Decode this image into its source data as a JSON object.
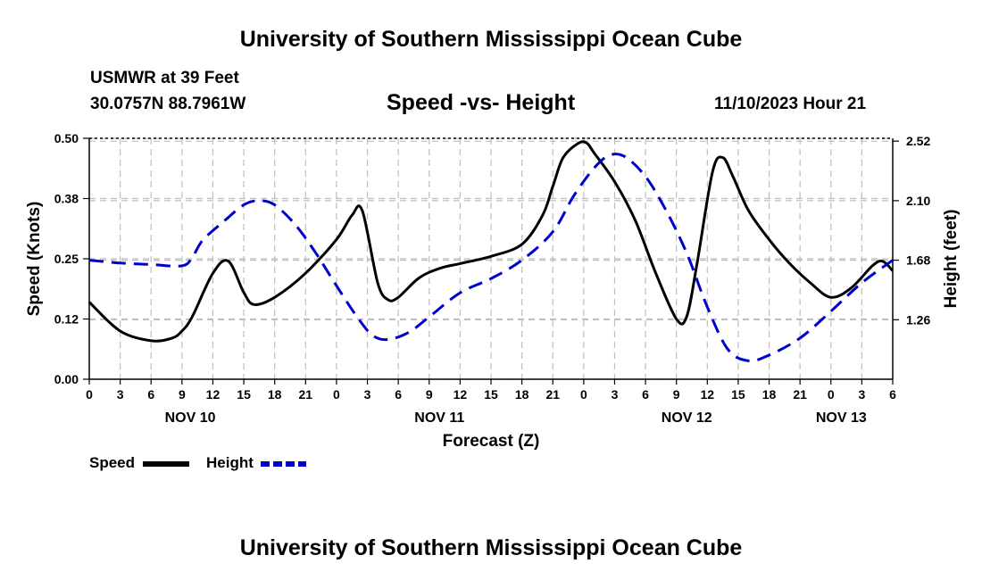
{
  "page": {
    "title_top": "University of Southern Mississippi Ocean Cube",
    "title_bottom": "University of Southern Mississippi Ocean Cube",
    "station": "USMWR at 39 Feet",
    "coords": "30.0757N  88.7961W",
    "subtitle": "Speed -vs- Height",
    "datetime": "11/10/2023 Hour 21"
  },
  "chart_data": {
    "type": "line",
    "title": "Speed -vs- Height",
    "xlabel": "Forecast (Z)",
    "ylabel": "Speed (Knots)",
    "y2label": "Height (feet)",
    "x_range": [
      0,
      78
    ],
    "x_tick_positions": [
      0,
      3,
      6,
      9,
      12,
      15,
      18,
      21,
      24,
      27,
      30,
      33,
      36,
      39,
      42,
      45,
      48,
      51,
      54,
      57,
      60,
      63,
      66,
      69,
      72,
      75,
      78
    ],
    "x_tick_labels": [
      "0",
      "3",
      "6",
      "9",
      "12",
      "15",
      "18",
      "21",
      "0",
      "3",
      "6",
      "9",
      "12",
      "15",
      "18",
      "21",
      "0",
      "3",
      "6",
      "9",
      "12",
      "15",
      "18",
      "21",
      "0",
      "3",
      "6"
    ],
    "day_labels": [
      {
        "label": "NOV 10",
        "x": 9.8
      },
      {
        "label": "NOV 11",
        "x": 34.0
      },
      {
        "label": "NOV 12",
        "x": 58.0
      },
      {
        "label": "NOV 13",
        "x": 73.0
      }
    ],
    "y_left": {
      "range": [
        0,
        0.5
      ],
      "ticks": [
        0.0,
        0.125,
        0.25,
        0.375,
        0.5
      ],
      "tick_labels": [
        "0.00",
        "0.12",
        "0.25",
        "0.38",
        "0.50"
      ]
    },
    "y_right": {
      "range": [
        0.84,
        2.54
      ],
      "ticks": [
        1.26,
        1.68,
        2.1,
        2.52
      ],
      "tick_labels": [
        "1.26",
        "1.68",
        "2.10",
        "2.52"
      ]
    },
    "grid": true,
    "legend_position": "bottom-left",
    "series": [
      {
        "name": "Speed",
        "axis": "left",
        "color": "#000000",
        "style": "solid",
        "x": [
          0,
          3,
          6,
          8,
          9,
          10,
          12,
          13.5,
          15,
          16,
          18,
          21,
          24,
          25.5,
          26.5,
          28,
          29,
          30,
          32,
          34,
          36,
          39,
          42,
          44,
          45,
          46,
          47.5,
          48.3,
          49,
          51,
          53,
          55,
          57,
          58,
          59,
          60.5,
          61.5,
          62.5,
          64,
          66,
          68,
          70,
          72,
          74,
          76,
          77,
          78
        ],
        "values": [
          0.16,
          0.1,
          0.08,
          0.085,
          0.1,
          0.13,
          0.22,
          0.245,
          0.18,
          0.155,
          0.17,
          0.22,
          0.29,
          0.34,
          0.35,
          0.2,
          0.165,
          0.17,
          0.21,
          0.23,
          0.24,
          0.255,
          0.28,
          0.34,
          0.4,
          0.46,
          0.49,
          0.49,
          0.47,
          0.41,
          0.33,
          0.22,
          0.125,
          0.13,
          0.24,
          0.43,
          0.46,
          0.42,
          0.35,
          0.29,
          0.24,
          0.2,
          0.17,
          0.19,
          0.235,
          0.245,
          0.225
        ]
      },
      {
        "name": "Height",
        "axis": "right",
        "color": "#0000cc",
        "style": "dashed",
        "x": [
          0,
          3,
          6,
          9,
          10,
          11,
          13,
          15,
          16.5,
          18,
          20,
          22,
          24,
          26,
          27.5,
          29,
          31,
          33,
          36,
          39,
          42,
          45,
          47,
          49,
          50.5,
          52,
          54,
          56,
          58,
          60,
          62,
          64,
          66,
          69,
          72,
          75,
          78
        ],
        "values": [
          1.68,
          1.66,
          1.65,
          1.64,
          1.7,
          1.82,
          1.95,
          2.07,
          2.1,
          2.07,
          1.93,
          1.73,
          1.5,
          1.28,
          1.15,
          1.12,
          1.17,
          1.28,
          1.45,
          1.55,
          1.68,
          1.88,
          2.13,
          2.33,
          2.42,
          2.41,
          2.27,
          2.03,
          1.73,
          1.35,
          1.05,
          0.97,
          1.01,
          1.13,
          1.32,
          1.52,
          1.68
        ]
      }
    ]
  },
  "legend": {
    "speed_label": "Speed",
    "height_label": "Height"
  }
}
